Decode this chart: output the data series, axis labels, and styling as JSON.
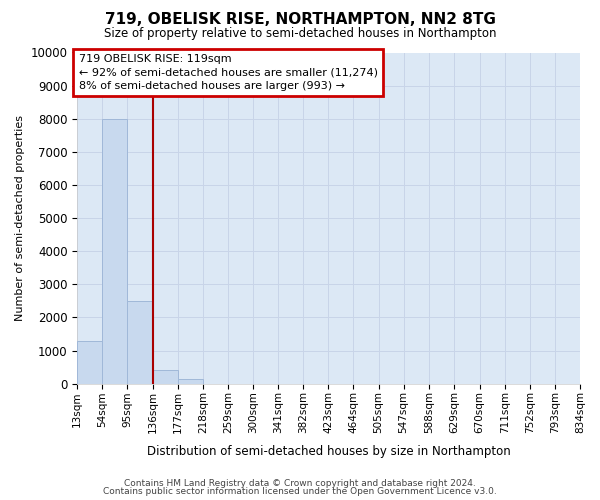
{
  "title": "719, OBELISK RISE, NORTHAMPTON, NN2 8TG",
  "subtitle": "Size of property relative to semi-detached houses in Northampton",
  "xlabel": "Distribution of semi-detached houses by size in Northampton",
  "ylabel": "Number of semi-detached properties",
  "bar_color": "#c8d9ee",
  "bar_edge_color": "#a0b8d8",
  "grid_color": "#c8d4e8",
  "background_color": "#dce8f5",
  "annotation_line1": "719 OBELISK RISE: 119sqm",
  "annotation_line2": "← 92% of semi-detached houses are smaller (11,274)",
  "annotation_line3": "8% of semi-detached houses are larger (993) →",
  "annotation_box_color": "#cc0000",
  "vline_x": 136,
  "vline_color": "#aa0000",
  "bins": [
    13,
    54,
    95,
    136,
    177,
    218,
    259,
    300,
    341,
    382,
    423,
    464,
    505,
    546,
    588,
    629,
    670,
    711,
    752,
    793,
    834
  ],
  "bin_labels": [
    "13sqm",
    "54sqm",
    "95sqm",
    "136sqm",
    "177sqm",
    "218sqm",
    "259sqm",
    "300sqm",
    "341sqm",
    "382sqm",
    "423sqm",
    "464sqm",
    "505sqm",
    "547sqm",
    "588sqm",
    "629sqm",
    "670sqm",
    "711sqm",
    "752sqm",
    "793sqm",
    "834sqm"
  ],
  "counts": [
    1300,
    8000,
    2500,
    400,
    150,
    0,
    0,
    0,
    0,
    0,
    0,
    0,
    0,
    0,
    0,
    0,
    0,
    0,
    0,
    0
  ],
  "ylim": [
    0,
    10000
  ],
  "yticks": [
    0,
    1000,
    2000,
    3000,
    4000,
    5000,
    6000,
    7000,
    8000,
    9000,
    10000
  ],
  "footer_line1": "Contains HM Land Registry data © Crown copyright and database right 2024.",
  "footer_line2": "Contains public sector information licensed under the Open Government Licence v3.0."
}
